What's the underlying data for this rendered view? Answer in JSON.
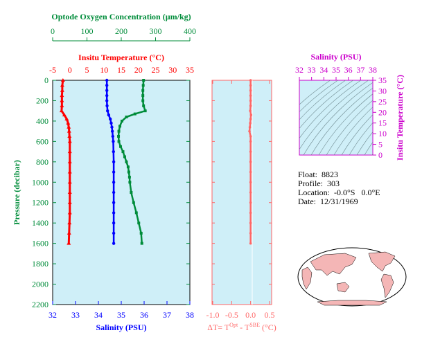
{
  "colors": {
    "temperature": "#ff0000",
    "salinity": "#0000ff",
    "oxygen": "#008c3a",
    "delta": "#ff6666",
    "ts": "#cc00cc",
    "panel_bg": "#cfeff8",
    "axis": "#000000"
  },
  "info": {
    "float_label": "Float:",
    "float_value": "8823",
    "profile_label": "Profile:",
    "profile_value": "303",
    "location_label": "Location:",
    "location_value": "-0.0°S   0.0°E",
    "date_label": "Date:",
    "date_value": "12/31/1969"
  },
  "chart_data": [
    {
      "type": "line",
      "panel": "profile",
      "ylabel": "Pressure (decibar)",
      "yticks": [
        "0",
        "200",
        "400",
        "600",
        "800",
        "1000",
        "1200",
        "1400",
        "1600",
        "1800",
        "2000",
        "2200"
      ],
      "ylim": [
        2200,
        0
      ],
      "axes": {
        "oxygen": {
          "label": "Optode Oxygen Concentration (µm/kg)",
          "ticks": [
            "0",
            "100",
            "200",
            "300",
            "400"
          ],
          "lim": [
            0,
            400
          ]
        },
        "temperature": {
          "label": "Insitu Temperature (°C)",
          "ticks": [
            "-5",
            "0",
            "5",
            "10",
            "15",
            "20",
            "25",
            "30",
            "35"
          ],
          "lim": [
            -5,
            35
          ]
        },
        "salinity": {
          "label": "Salinity (PSU)",
          "ticks": [
            "32",
            "33",
            "34",
            "35",
            "36",
            "37",
            "38"
          ],
          "lim": [
            32,
            38
          ]
        }
      },
      "series": [
        {
          "key": "temperature",
          "marker": "triangle",
          "points": [
            [
              -2.0,
              0
            ],
            [
              -2.2,
              50
            ],
            [
              -2.2,
              100
            ],
            [
              -2.3,
              150
            ],
            [
              -2.3,
              200
            ],
            [
              -2.3,
              250
            ],
            [
              -2.4,
              300
            ],
            [
              -1.6,
              340
            ],
            [
              -0.9,
              380
            ],
            [
              -0.5,
              420
            ],
            [
              -0.3,
              460
            ],
            [
              -0.2,
              500
            ],
            [
              -0.1,
              550
            ],
            [
              0.0,
              600
            ],
            [
              0.0,
              700
            ],
            [
              0.0,
              800
            ],
            [
              0.0,
              900
            ],
            [
              0.0,
              1000
            ],
            [
              0.0,
              1100
            ],
            [
              0.0,
              1200
            ],
            [
              0.0,
              1300
            ],
            [
              -0.1,
              1400
            ],
            [
              -0.2,
              1500
            ],
            [
              -0.3,
              1600
            ]
          ]
        },
        {
          "key": "salinity",
          "marker": "circle",
          "points": [
            [
              34.37,
              0
            ],
            [
              34.37,
              50
            ],
            [
              34.37,
              100
            ],
            [
              34.37,
              150
            ],
            [
              34.37,
              200
            ],
            [
              34.38,
              250
            ],
            [
              34.4,
              300
            ],
            [
              34.45,
              340
            ],
            [
              34.52,
              380
            ],
            [
              34.56,
              420
            ],
            [
              34.59,
              460
            ],
            [
              34.61,
              500
            ],
            [
              34.63,
              550
            ],
            [
              34.65,
              600
            ],
            [
              34.66,
              700
            ],
            [
              34.67,
              800
            ],
            [
              34.67,
              900
            ],
            [
              34.67,
              1000
            ],
            [
              34.67,
              1100
            ],
            [
              34.67,
              1200
            ],
            [
              34.67,
              1300
            ],
            [
              34.67,
              1400
            ],
            [
              34.67,
              1500
            ],
            [
              34.67,
              1600
            ]
          ]
        },
        {
          "key": "oxygen",
          "marker": "square",
          "points": [
            [
              265,
              0
            ],
            [
              264,
              50
            ],
            [
              263,
              100
            ],
            [
              263,
              150
            ],
            [
              263,
              200
            ],
            [
              265,
              250
            ],
            [
              270,
              300
            ],
            [
              240,
              330
            ],
            [
              215,
              360
            ],
            [
              202,
              400
            ],
            [
              196,
              450
            ],
            [
              193,
              500
            ],
            [
              192,
              550
            ],
            [
              193,
              600
            ],
            [
              198,
              650
            ],
            [
              205,
              700
            ],
            [
              210,
              750
            ],
            [
              215,
              800
            ],
            [
              220,
              850
            ],
            [
              222,
              900
            ],
            [
              224,
              950
            ],
            [
              225,
              1000
            ],
            [
              229,
              1100
            ],
            [
              236,
              1200
            ],
            [
              244,
              1300
            ],
            [
              251,
              1400
            ],
            [
              258,
              1500
            ],
            [
              260,
              1600
            ]
          ]
        }
      ]
    },
    {
      "type": "line",
      "panel": "delta",
      "xlabel": "ΔT= T^Opt - T^SBE (°C)",
      "xlabel_main": "ΔT= T",
      "xlabel_sup1": "Opt",
      "xlabel_mid": " - T",
      "xlabel_sup2": "SBE",
      "xlabel_end": " (°C)",
      "xticks": [
        "-1.0",
        "-0.5",
        "0.0",
        "0.5"
      ],
      "xlim": [
        -1.0,
        0.5
      ],
      "ylim": [
        2200,
        0
      ],
      "series": [
        {
          "key": "delta",
          "marker": "circle",
          "points": [
            [
              0.0,
              0
            ],
            [
              0.0,
              50
            ],
            [
              0.0,
              100
            ],
            [
              0.0,
              150
            ],
            [
              0.0,
              200
            ],
            [
              0.0,
              250
            ],
            [
              -0.01,
              300
            ],
            [
              0.01,
              340
            ],
            [
              0.0,
              380
            ],
            [
              -0.01,
              420
            ],
            [
              -0.02,
              460
            ],
            [
              -0.03,
              500
            ],
            [
              0.0,
              550
            ],
            [
              0.0,
              600
            ],
            [
              0.0,
              700
            ],
            [
              0.0,
              800
            ],
            [
              0.0,
              900
            ],
            [
              0.0,
              1000
            ],
            [
              0.0,
              1100
            ],
            [
              0.0,
              1200
            ],
            [
              0.0,
              1300
            ],
            [
              0.0,
              1400
            ],
            [
              0.0,
              1500
            ],
            [
              0.0,
              1600
            ]
          ]
        }
      ]
    },
    {
      "type": "line",
      "panel": "ts",
      "title": "Salinity (PSU)",
      "xticks": [
        "32",
        "33",
        "34",
        "35",
        "36",
        "37",
        "38"
      ],
      "xlim": [
        32,
        38
      ],
      "ylabel": "Insitu Temperature (°C)",
      "yticks": [
        "0",
        "5",
        "10",
        "15",
        "20",
        "25",
        "30",
        "35"
      ],
      "ylim": [
        0,
        35
      ],
      "grid": "density contours"
    }
  ]
}
